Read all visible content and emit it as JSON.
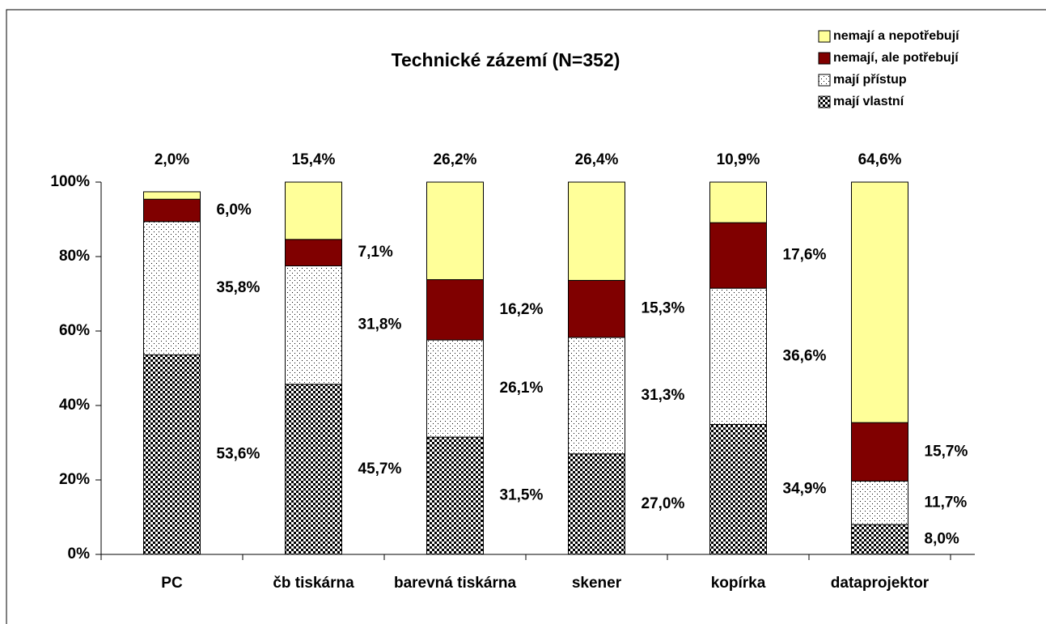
{
  "chart_data": {
    "type": "stacked_bar",
    "title": "Technické zázemí (N=352)",
    "categories": [
      "PC",
      "čb tiskárna",
      "barevná tiskárna",
      "skener",
      "kopírka",
      "dataprojektor"
    ],
    "series": [
      {
        "name": "mají vlastní",
        "color": "#000000",
        "pattern": "checker",
        "values": [
          53.6,
          45.7,
          31.5,
          27.0,
          34.9,
          8.0
        ],
        "value_labels": [
          "53,6%",
          "45,7%",
          "31,5%",
          "27,0%",
          "34,9%",
          "8,0%"
        ]
      },
      {
        "name": "mají přístup",
        "color": "#000000",
        "pattern": "dots",
        "values": [
          35.8,
          31.8,
          26.1,
          31.3,
          36.6,
          11.7
        ],
        "value_labels": [
          "35,8%",
          "31,8%",
          "26,1%",
          "31,3%",
          "36,6%",
          "11,7%"
        ]
      },
      {
        "name": "nemají, ale potřebují",
        "color": "#800000",
        "values": [
          6.0,
          7.1,
          16.2,
          15.3,
          17.6,
          15.7
        ],
        "value_labels": [
          "6,0%",
          "7,1%",
          "16,2%",
          "15,3%",
          "17,6%",
          "15,7%"
        ]
      },
      {
        "name": "nemají a nepotřebují",
        "color": "#ffff99",
        "values": [
          2.0,
          15.4,
          26.2,
          26.4,
          10.9,
          64.6
        ],
        "value_labels": [
          "2,0%",
          "15,4%",
          "26,2%",
          "26,4%",
          "10,9%",
          "64,6%"
        ]
      }
    ],
    "ylim": [
      0,
      100
    ],
    "yticks": [
      {
        "value": 0,
        "label": "0%"
      },
      {
        "value": 20,
        "label": "20%"
      },
      {
        "value": 40,
        "label": "40%"
      },
      {
        "value": 60,
        "label": "60%"
      },
      {
        "value": 80,
        "label": "80%"
      },
      {
        "value": 100,
        "label": "100%"
      }
    ],
    "grid": false,
    "legend": "top-right"
  }
}
